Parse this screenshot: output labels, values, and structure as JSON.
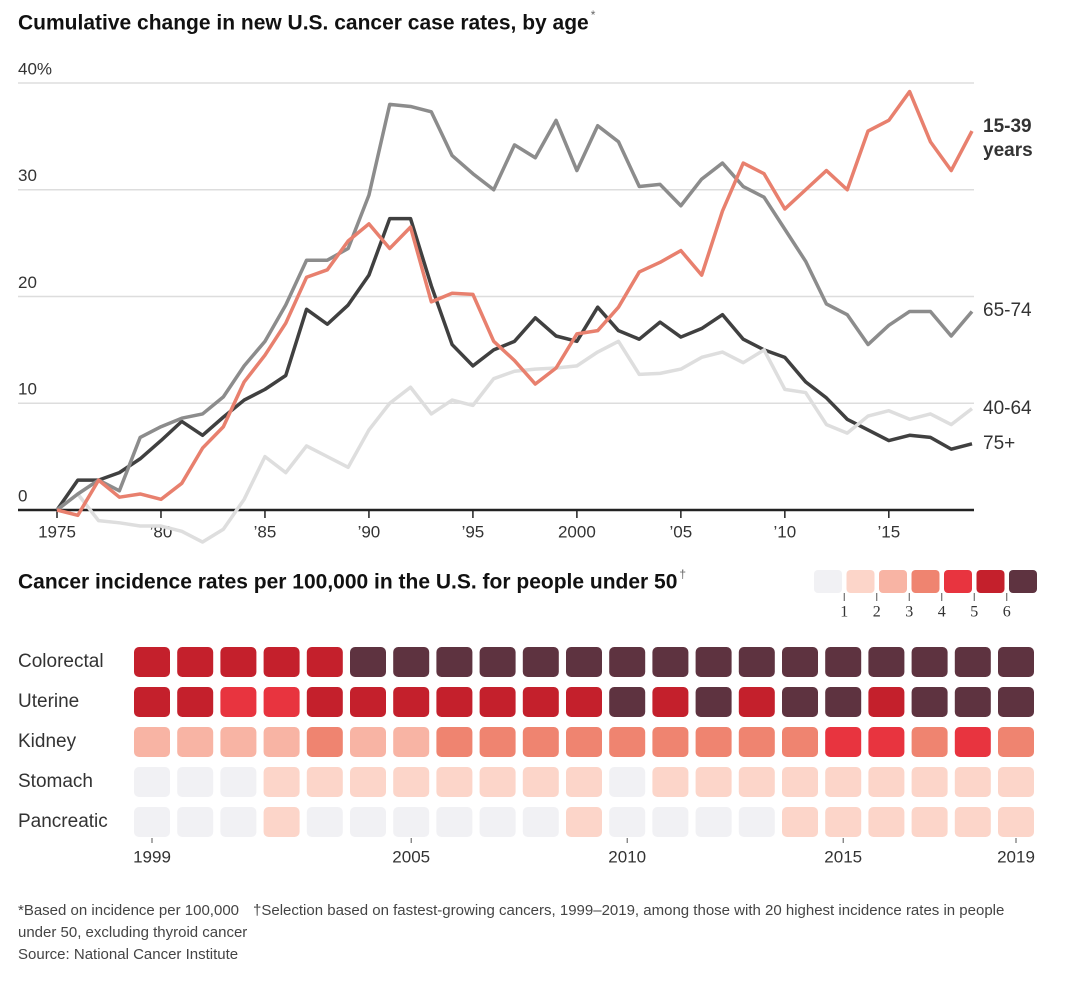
{
  "chart_data": [
    {
      "type": "line",
      "title": "Cumulative change in new U.S. cancer case rates, by age",
      "title_note": "*",
      "x": [
        1975,
        1976,
        1977,
        1978,
        1979,
        1980,
        1981,
        1982,
        1983,
        1984,
        1985,
        1986,
        1987,
        1988,
        1989,
        1990,
        1991,
        1992,
        1993,
        1994,
        1995,
        1996,
        1997,
        1998,
        1999,
        2000,
        2001,
        2002,
        2003,
        2004,
        2005,
        2006,
        2007,
        2008,
        2009,
        2010,
        2011,
        2012,
        2013,
        2014,
        2015,
        2016,
        2017,
        2018,
        2019
      ],
      "xlim": [
        1975,
        2019
      ],
      "xticks": [
        1975,
        {
          "value": 1980,
          "label": "’80"
        },
        {
          "value": 1985,
          "label": "’85"
        },
        {
          "value": 1990,
          "label": "’90"
        },
        {
          "value": 1995,
          "label": "’95"
        },
        2000,
        {
          "value": 2005,
          "label": "’05"
        },
        {
          "value": 2010,
          "label": "’10"
        },
        {
          "value": 2015,
          "label": "’15"
        }
      ],
      "ylim": [
        -4,
        40
      ],
      "yticks": [
        0,
        10,
        20,
        30,
        {
          "value": 40,
          "label": "40%"
        }
      ],
      "grid": true,
      "series": [
        {
          "name": "15-39 years",
          "color": "#e8806e",
          "values": [
            0,
            -0.5,
            2.8,
            1.2,
            1.5,
            1.0,
            2.5,
            5.8,
            7.8,
            12,
            14.5,
            17.5,
            21.8,
            22.5,
            25.2,
            26.8,
            24.5,
            26.5,
            19.5,
            20.3,
            20.2,
            15.8,
            14.0,
            11.8,
            13.3,
            16.5,
            16.8,
            19,
            22.3,
            23.2,
            24.3,
            22,
            28,
            32.5,
            31.5,
            28.2,
            30,
            31.8,
            30,
            35.5,
            36.5,
            39.2,
            34.5,
            31.8,
            35.5
          ]
        },
        {
          "name": "65-74",
          "color": "#8c8c8c",
          "values": [
            0,
            1.5,
            2.8,
            1.8,
            6.8,
            7.8,
            8.6,
            9.0,
            10.6,
            13.5,
            15.8,
            19.2,
            23.4,
            23.4,
            24.5,
            29.5,
            38.0,
            37.8,
            37.3,
            33.2,
            31.5,
            30.0,
            34.2,
            33.0,
            36.5,
            31.8,
            36.0,
            34.5,
            30.3,
            30.5,
            28.5,
            31.0,
            32.5,
            30.3,
            29.3,
            26.3,
            23.3,
            19.3,
            18.3,
            15.5,
            17.3,
            18.6,
            18.6,
            16.3,
            18.6
          ]
        },
        {
          "name": "40-64",
          "color": "#dedede",
          "values": [
            0,
            1.5,
            -1.0,
            -1.2,
            -1.5,
            -1.5,
            -2.0,
            -3.0,
            -1.8,
            1.0,
            5.0,
            3.5,
            6.0,
            5.0,
            4.0,
            7.5,
            10.0,
            11.5,
            9.0,
            10.3,
            9.8,
            12.3,
            13.0,
            13.2,
            13.3,
            13.5,
            14.8,
            15.8,
            12.7,
            12.8,
            13.2,
            14.3,
            14.8,
            13.8,
            15.0,
            11.3,
            11.0,
            8.0,
            7.2,
            8.8,
            9.3,
            8.5,
            9.0,
            8.0,
            9.5
          ]
        },
        {
          "name": "75+",
          "color": "#404040",
          "values": [
            0,
            2.8,
            2.8,
            3.5,
            4.8,
            6.5,
            8.3,
            7.0,
            8.7,
            10.3,
            11.3,
            12.6,
            18.8,
            17.4,
            19.2,
            22,
            27.3,
            27.3,
            21,
            15.5,
            13.5,
            15,
            15.8,
            18,
            16.3,
            15.8,
            19,
            16.8,
            16,
            17.6,
            16.2,
            17,
            18.3,
            16,
            15,
            14.3,
            12,
            10.5,
            8.5,
            7.5,
            6.5,
            7,
            6.8,
            5.7,
            6.2
          ]
        }
      ]
    },
    {
      "type": "heatmap",
      "title": "Cancer incidence rates per 100,000 in the U.S. for people under 50",
      "title_note": "†",
      "x": [
        1999,
        2000,
        2001,
        2002,
        2003,
        2004,
        2005,
        2006,
        2007,
        2008,
        2009,
        2010,
        2011,
        2012,
        2013,
        2014,
        2015,
        2016,
        2017,
        2018,
        2019
      ],
      "xlim": [
        1999,
        2019
      ],
      "xticks": [
        1999,
        2005,
        2010,
        2015,
        2019
      ],
      "rows": [
        "Colorectal",
        "Uterine",
        "Kidney",
        "Stomach",
        "Pancreatic"
      ],
      "values": [
        [
          5.5,
          5.5,
          5.5,
          5.5,
          5.5,
          6.5,
          6.5,
          6.5,
          6.5,
          6.5,
          6.5,
          6.5,
          6.5,
          6.5,
          6.5,
          6.5,
          6.5,
          6.5,
          6.5,
          6.5,
          6.5
        ],
        [
          5.5,
          5.5,
          4.5,
          4.5,
          5.5,
          5.5,
          5.5,
          5.5,
          5.5,
          5.5,
          5.5,
          6.5,
          5.5,
          6.5,
          5.5,
          6.5,
          6.5,
          5.5,
          6.5,
          6.5,
          6.5
        ],
        [
          2.5,
          2.5,
          2.5,
          2.5,
          3.5,
          2.5,
          2.5,
          3.5,
          3.5,
          3.5,
          3.5,
          3.5,
          3.5,
          3.5,
          3.5,
          3.5,
          4.5,
          4.5,
          3.5,
          4.5,
          3.5
        ],
        [
          0.5,
          0.5,
          0.5,
          1.5,
          1.5,
          1.5,
          1.5,
          1.5,
          1.5,
          1.5,
          1.5,
          0.5,
          1.5,
          1.5,
          1.5,
          1.5,
          1.5,
          1.5,
          1.5,
          1.5,
          1.5
        ],
        [
          0.5,
          0.5,
          0.5,
          1.5,
          0.5,
          0.5,
          0.5,
          0.5,
          0.5,
          0.5,
          1.5,
          0.5,
          0.5,
          0.5,
          0.5,
          1.5,
          1.5,
          1.5,
          1.5,
          1.5,
          1.5
        ]
      ],
      "color_breaks": [
        1,
        2,
        3,
        4,
        5,
        6
      ],
      "colors": [
        "#f1f1f4",
        "#fcd5c9",
        "#f8b4a4",
        "#ef8470",
        "#e8343f",
        "#c4202c",
        "#5e3340"
      ]
    }
  ],
  "notes": [
    "*Based on incidence per 100,000",
    "†Selection based on fastest-growing cancers, 1999–2019, among those with 20 highest incidence rates in people under 50, excluding thyroid cancer"
  ],
  "source": "Source: National Cancer Institute"
}
